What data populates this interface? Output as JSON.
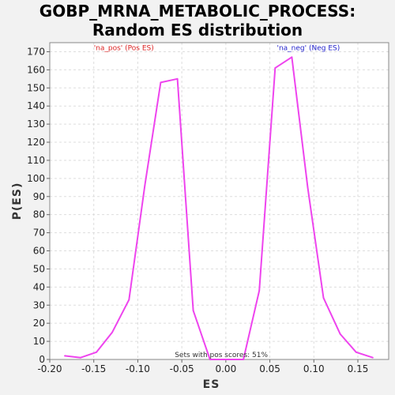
{
  "chart_data": {
    "type": "line",
    "title": "GOBP_MRNA_METABOLIC_PROCESS:",
    "subtitle": "Random ES distribution",
    "xlabel": "ES",
    "ylabel": "P(ES)",
    "xlim": [
      -0.2,
      0.185
    ],
    "ylim": [
      0,
      175
    ],
    "xticks": [
      -0.2,
      -0.15,
      -0.1,
      -0.05,
      0.0,
      0.05,
      0.1,
      0.15
    ],
    "xtick_labels": [
      "-0.20",
      "-0.15",
      "-0.10",
      "-0.05",
      "0.00",
      "0.05",
      "0.10",
      "0.15"
    ],
    "yticks": [
      0,
      10,
      20,
      30,
      40,
      50,
      60,
      70,
      80,
      90,
      100,
      110,
      120,
      130,
      140,
      150,
      160,
      170
    ],
    "grid": true,
    "line_color": "#ee44ee",
    "series": [
      {
        "x": [
          -0.183,
          -0.165,
          -0.147,
          -0.129,
          -0.11,
          -0.092,
          -0.074,
          -0.055,
          -0.037,
          -0.018,
          0.0,
          0.02,
          0.038,
          0.056,
          0.075,
          0.093,
          0.111,
          0.13,
          0.148,
          0.167
        ],
        "values": [
          2,
          1,
          4,
          15,
          33,
          96,
          153,
          155,
          27,
          0,
          0,
          0,
          38,
          161,
          167,
          95,
          34,
          14,
          4,
          1
        ]
      }
    ],
    "annotations": [
      {
        "text": "'na_pos' (Pos ES)",
        "color": "#dd2222",
        "x": -0.15,
        "y": 170
      },
      {
        "text": "'na_neg' (Neg ES)",
        "color": "#2222cc",
        "x": 0.058,
        "y": 170
      },
      {
        "text": "Sets with pos scores: 51%",
        "color": "#333333",
        "x": -0.058,
        "y": 0.5
      }
    ]
  }
}
